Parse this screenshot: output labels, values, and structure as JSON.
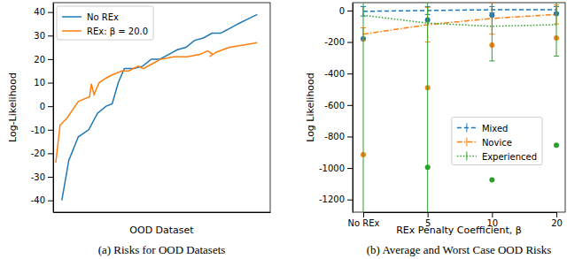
{
  "chart_data": [
    {
      "type": "line",
      "title": "(a) Risks for OOD Datasets",
      "x_label": "OOD Dataset",
      "y_label": "Log-Likelihood",
      "xlim": [
        0,
        25
      ],
      "ylim": [
        -45,
        44
      ],
      "yticks": [
        -40,
        -30,
        -20,
        -10,
        0,
        10,
        20,
        30,
        40
      ],
      "tick_labels": "y",
      "legend": "upper left",
      "series": [
        {
          "name": "No REx",
          "color": "#1f77b4",
          "line_style": "solid",
          "x": [
            1,
            1.8,
            2.9,
            4.1,
            5.1,
            6.1,
            6.8,
            7.5,
            8.2,
            9.3,
            10.3,
            11.3,
            12.3,
            13.3,
            14.3,
            15.3,
            16.3,
            17.3,
            18.3,
            19.3,
            20.3,
            21.3,
            22.4,
            23.5
          ],
          "values": [
            -40,
            -23,
            -13,
            -10,
            -3,
            0,
            1,
            10,
            16,
            16,
            17,
            20,
            20,
            22,
            24,
            25,
            28,
            29,
            31,
            31,
            33,
            35,
            37,
            39
          ]
        },
        {
          "name": "REx: β = 20.0",
          "color": "#ff7f0e",
          "line_style": "solid",
          "x": [
            0.3,
            0.8,
            1.6,
            2.9,
            4.2,
            4.4,
            4.7,
            5.3,
            6.1,
            6.9,
            7.9,
            8.7,
            9.8,
            10.4,
            11.4,
            12.4,
            13.9,
            15.4,
            16.9,
            17.8,
            18.4,
            18.0,
            18.8,
            20.3,
            21.9,
            23.5
          ],
          "values": [
            -24,
            -8,
            -5,
            2,
            4,
            9.5,
            5,
            10,
            12,
            13.5,
            15,
            15,
            17,
            16,
            18,
            20,
            21,
            21,
            22,
            23.5,
            22,
            21,
            23,
            25,
            26,
            27
          ]
        }
      ]
    },
    {
      "type": "line",
      "title": "(b) Average and Worst Case OOD Risks",
      "x_label": "REx Penalty Coefficient, β",
      "y_label": "Log Likelihood",
      "categories": [
        "No REx",
        "5",
        "10",
        "20"
      ],
      "ylim": [
        -1280,
        50
      ],
      "yticks": [
        -1200,
        -1000,
        -800,
        -600,
        -400,
        -200,
        0
      ],
      "legend": "center right",
      "series": [
        {
          "name": "Mixed",
          "color": "#1f77b4",
          "line_style": "dashed",
          "values": [
            -5,
            0,
            5,
            5
          ],
          "error": [
            30,
            25,
            20,
            20
          ],
          "worst": [
            -180,
            -60,
            -30,
            -20
          ]
        },
        {
          "name": "Novice",
          "color": "#ff7f0e",
          "line_style": "dashdot",
          "values": [
            -150,
            -90,
            -50,
            -25
          ],
          "error": [
            40,
            110,
            100,
            60
          ],
          "worst": [
            -915,
            -490,
            -220,
            -175
          ]
        },
        {
          "name": "Experienced",
          "color": "#2ca02c",
          "line_style": "dotted",
          "values": [
            -30,
            -80,
            -100,
            -90
          ],
          "error": [
            1300,
            1250,
            220,
            200
          ],
          "worst": [
            null,
            -995,
            -1075,
            -855
          ]
        }
      ]
    }
  ]
}
